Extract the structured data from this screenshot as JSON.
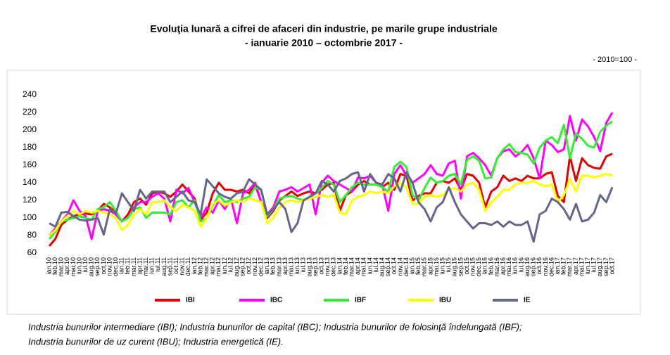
{
  "chart_data": {
    "type": "line",
    "title": "Evoluţia lunară a cifrei de afaceri din industrie, pe marile grupe industriale",
    "subtitle": "-  ianuarie 2010 – octombrie 2017  -",
    "base_note": "- 2010=100 -",
    "footnote": [
      "Industria bunurilor intermediare (IBI); Industria bunurilor de capital (IBC); Industria bunurilor de folosinţă îndelungată (IBF);",
      "Industria bunurilor de uz curent (IBU); Industria energetică (IE)."
    ],
    "categories": [
      "ian.10",
      "feb.10",
      "mar.10",
      "apr.10",
      "mai.10",
      "iun.10",
      "iul.10",
      "aug.10",
      "sep.10",
      "oct.10",
      "nov.10",
      "dec.10",
      "ian.11",
      "feb.11",
      "mar.11",
      "apr.11",
      "mai.11",
      "iun.11",
      "iul.11",
      "aug.11",
      "sep.11",
      "oct.11",
      "nov.11",
      "dec.11",
      "ian.12",
      "feb.12",
      "mar.12",
      "apr.12",
      "mai.12",
      "iun.12",
      "iul.12",
      "aug.12",
      "sep.12",
      "oct.12",
      "nov.12",
      "dec.12",
      "ian.13",
      "feb.13",
      "mar.13",
      "apr.13",
      "mai.13",
      "iun.13",
      "iul.13",
      "aug.13",
      "sep.13",
      "oct.13",
      "nov.13",
      "dec.13",
      "ian.14",
      "feb.14",
      "mar.14",
      "apr.14",
      "mai.14",
      "iun.14",
      "iul.14",
      "aug.14",
      "sep.14",
      "oct.14",
      "nov.14",
      "dec.14",
      "ian.15",
      "feb.15",
      "mar.15",
      "apr.15",
      "mai.15",
      "iun.15",
      "iul.15",
      "aug.15",
      "sep.15",
      "oct.15",
      "nov.15",
      "dec.15",
      "ian.16",
      "feb.16",
      "mar.16",
      "apr.16",
      "mai.16",
      "iun.16",
      "iul.16",
      "aug.16",
      "sep.16",
      "oct.16",
      "nov.16",
      "dec.16",
      "ian.17",
      "feb.17",
      "mar.17",
      "apr.17",
      "mai.17",
      "iun.17",
      "iul.17",
      "aug.17",
      "sep.17",
      "oct.17"
    ],
    "series": [
      {
        "name": "IBI",
        "color": "#e00000",
        "values": [
          68,
          76,
          92,
          98,
          102,
          104,
          105,
          104,
          108,
          116,
          112,
          106,
          96,
          104,
          118,
          122,
          115,
          128,
          130,
          128,
          124,
          130,
          138,
          130,
          122,
          98,
          106,
          128,
          140,
          132,
          132,
          130,
          132,
          128,
          138,
          118,
          100,
          108,
          120,
          125,
          130,
          125,
          128,
          130,
          128,
          132,
          138,
          140,
          108,
          126,
          130,
          138,
          142,
          138,
          138,
          135,
          140,
          132,
          150,
          148,
          120,
          125,
          128,
          128,
          140,
          142,
          140,
          145,
          132,
          150,
          148,
          140,
          112,
          130,
          135,
          148,
          142,
          145,
          142,
          148,
          145,
          145,
          150,
          152,
          125,
          118,
          170,
          142,
          168,
          160,
          157,
          156,
          170,
          173
        ]
      },
      {
        "name": "IBC",
        "color": "#ff00ff",
        "values": [
          80,
          88,
          96,
          104,
          120,
          108,
          102,
          76,
          108,
          110,
          108,
          104,
          96,
          100,
          112,
          118,
          118,
          124,
          128,
          122,
          96,
          132,
          128,
          134,
          118,
          100,
          112,
          106,
          120,
          110,
          122,
          94,
          128,
          132,
          140,
          118,
          104,
          112,
          130,
          132,
          135,
          130,
          134,
          138,
          104,
          140,
          148,
          142,
          138,
          134,
          130,
          146,
          145,
          148,
          140,
          138,
          108,
          150,
          160,
          148,
          140,
          145,
          150,
          160,
          150,
          148,
          162,
          165,
          122,
          170,
          174,
          168,
          160,
          148,
          168,
          176,
          178,
          170,
          175,
          183,
          168,
          145,
          188,
          183,
          175,
          178,
          216,
          188,
          212,
          204,
          192,
          176,
          208,
          220
        ]
      },
      {
        "name": "IBF",
        "color": "#33ee33",
        "values": [
          76,
          84,
          96,
          98,
          100,
          102,
          100,
          98,
          110,
          112,
          118,
          108,
          96,
          100,
          110,
          112,
          100,
          106,
          106,
          106,
          104,
          118,
          120,
          112,
          120,
          96,
          100,
          114,
          126,
          118,
          120,
          118,
          122,
          124,
          135,
          132,
          102,
          110,
          122,
          124,
          125,
          122,
          120,
          124,
          128,
          134,
          142,
          138,
          118,
          126,
          135,
          140,
          138,
          138,
          138,
          135,
          130,
          158,
          164,
          158,
          126,
          120,
          134,
          146,
          140,
          142,
          148,
          150,
          138,
          166,
          170,
          165,
          145,
          146,
          168,
          178,
          184,
          175,
          174,
          172,
          162,
          180,
          188,
          192,
          185,
          206,
          168,
          196,
          190,
          182,
          180,
          198,
          205,
          210
        ]
      },
      {
        "name": "IBU",
        "color": "#ffff00",
        "values": [
          80,
          86,
          96,
          102,
          108,
          104,
          108,
          106,
          108,
          106,
          104,
          100,
          86,
          92,
          104,
          110,
          104,
          118,
          118,
          120,
          112,
          108,
          115,
          112,
          108,
          90,
          100,
          116,
          120,
          114,
          118,
          120,
          118,
          122,
          120,
          118,
          94,
          100,
          112,
          118,
          120,
          118,
          120,
          122,
          124,
          126,
          124,
          126,
          106,
          104,
          120,
          124,
          126,
          130,
          128,
          130,
          128,
          136,
          140,
          134,
          116,
          116,
          124,
          126,
          124,
          126,
          132,
          134,
          130,
          138,
          140,
          132,
          108,
          118,
          124,
          132,
          132,
          138,
          140,
          140,
          142,
          138,
          136,
          138,
          118,
          126,
          144,
          130,
          148,
          148,
          146,
          148,
          150,
          148
        ]
      },
      {
        "name": "IE",
        "color": "#66668a",
        "values": [
          94,
          90,
          106,
          107,
          102,
          98,
          97,
          98,
          100,
          81,
          110,
          105,
          128,
          118,
          108,
          132,
          122,
          130,
          130,
          130,
          118,
          124,
          130,
          120,
          118,
          104,
          144,
          136,
          128,
          124,
          122,
          128,
          130,
          144,
          138,
          132,
          104,
          110,
          118,
          110,
          84,
          94,
          120,
          124,
          128,
          142,
          138,
          130,
          142,
          145,
          150,
          152,
          130,
          150,
          140,
          138,
          150,
          145,
          130,
          152,
          140,
          118,
          110,
          96,
          112,
          118,
          135,
          118,
          104,
          96,
          88,
          94,
          94,
          92,
          96,
          90,
          96,
          92,
          92,
          96,
          73,
          104,
          108,
          122,
          118,
          110,
          98,
          116,
          96,
          98,
          106,
          126,
          118,
          135
        ]
      }
    ],
    "ylim": [
      60,
      240
    ],
    "yticks": [
      60,
      80,
      100,
      120,
      140,
      160,
      180,
      200,
      220,
      240
    ],
    "grid": false,
    "legend": "bottom"
  }
}
